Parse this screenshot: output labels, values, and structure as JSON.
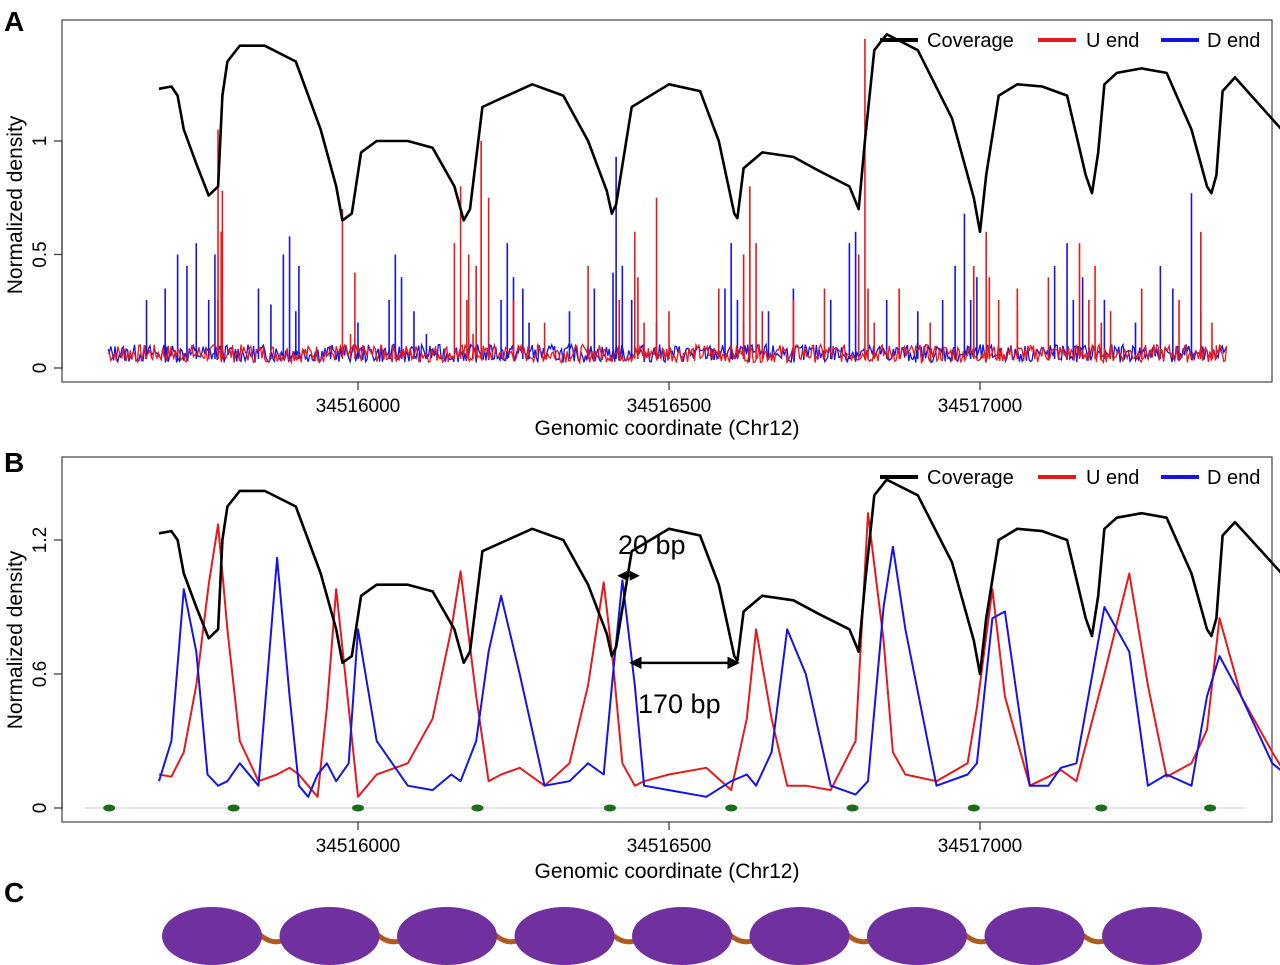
{
  "panels": [
    {
      "letter": "A"
    },
    {
      "letter": "B"
    },
    {
      "letter": "C"
    }
  ],
  "colors": {
    "coverage": "#000000",
    "u_end": "#e41a1c",
    "d_end": "#1414e6",
    "nucleosome": "#7030a0",
    "linker": "#b05a1e",
    "dyad": "#1a6e1a"
  },
  "chart_data": [
    {
      "type": "line",
      "panel": "A",
      "xlabel": "Genomic coordinate (Chr12)",
      "ylabel": "Normalized density",
      "xlim": [
        34515590,
        34517810
      ],
      "ylim": [
        -0.05,
        1.5
      ],
      "x_ticks": [
        34516000,
        34516500,
        34517000
      ],
      "y_ticks": [
        0,
        0.5,
        1
      ],
      "y_tick_labels": [
        "0",
        "0.5",
        "1"
      ],
      "legend": {
        "position": "top-right",
        "entries": [
          "Coverage",
          "U end",
          "D end"
        ]
      },
      "series": [
        {
          "name": "Coverage",
          "x": [
            34515680,
            34515700,
            34515710,
            34515720,
            34515740,
            34515760,
            34515775,
            34515782,
            34515790,
            34515810,
            34515850,
            34515900,
            34515940,
            34515965,
            34515975,
            34515990,
            34516005,
            34516030,
            34516080,
            34516120,
            34516155,
            34516170,
            34516180,
            34516200,
            34516240,
            34516280,
            34516330,
            34516370,
            34516400,
            34516408,
            34516415,
            34516440,
            34516500,
            34516550,
            34516580,
            34516605,
            34516610,
            34516620,
            34516650,
            34516700,
            34516740,
            34516790,
            34516805,
            34516815,
            34516830,
            34516850,
            34516900,
            34516955,
            34516990,
            34517000,
            34517010,
            34517030,
            34517060,
            34517100,
            34517140,
            34517170,
            34517180,
            34517190,
            34517200,
            34517220,
            34517260,
            34517300,
            34517340,
            34517365,
            34517372,
            34517380,
            34517390,
            34517410,
            34517485,
            34517490,
            34517510
          ],
          "values": [
            1.23,
            1.24,
            1.2,
            1.05,
            0.9,
            0.76,
            0.8,
            1.2,
            1.35,
            1.42,
            1.42,
            1.35,
            1.05,
            0.8,
            0.65,
            0.68,
            0.95,
            1.0,
            1.0,
            0.97,
            0.8,
            0.65,
            0.7,
            1.15,
            1.2,
            1.25,
            1.2,
            1.0,
            0.78,
            0.68,
            0.72,
            1.15,
            1.25,
            1.22,
            1.0,
            0.68,
            0.66,
            0.88,
            0.95,
            0.93,
            0.87,
            0.8,
            0.7,
            1.0,
            1.4,
            1.47,
            1.4,
            1.1,
            0.75,
            0.6,
            0.85,
            1.2,
            1.25,
            1.24,
            1.2,
            0.85,
            0.77,
            0.95,
            1.25,
            1.3,
            1.32,
            1.3,
            1.05,
            0.8,
            0.77,
            0.85,
            1.22,
            1.28,
            1.05,
            0.9,
            1.0
          ]
        },
        {
          "name": "U end",
          "peaks_x": [
            34515775,
            34515775,
            34515780,
            34515782,
            34515975,
            34515988,
            34515995,
            34516155,
            34516165,
            34516175,
            34516178,
            34516185,
            34516190,
            34516198,
            34516210,
            34516250,
            34516300,
            34516370,
            34516420,
            34516445,
            34516450,
            34516460,
            34516480,
            34516500,
            34516580,
            34516620,
            34516630,
            34516640,
            34516650,
            34516700,
            34516750,
            34516805,
            34516815,
            34516820,
            34516830,
            34516870,
            34516920,
            34516990,
            34517010,
            34517015,
            34517030,
            34517060,
            34517110,
            34517160,
            34517175,
            34517185,
            34517195,
            34517210,
            34517260,
            34517320,
            34517355,
            34517373,
            34517380
          ],
          "peaks_values": [
            0.3,
            1.05,
            0.6,
            0.78,
            0.7,
            0.15,
            0.42,
            0.55,
            0.8,
            0.3,
            0.5,
            0.15,
            0.45,
            1.0,
            0.75,
            0.3,
            0.2,
            0.45,
            0.3,
            0.6,
            0.4,
            0.2,
            0.75,
            0.25,
            0.35,
            0.5,
            0.8,
            0.55,
            0.25,
            0.3,
            0.35,
            0.5,
            1.45,
            0.35,
            0.2,
            0.35,
            0.2,
            0.45,
            0.6,
            0.4,
            0.3,
            0.35,
            0.4,
            0.55,
            0.3,
            0.45,
            0.2,
            0.25,
            0.35,
            0.3,
            0.6,
            0.2,
            0.1
          ],
          "baseline": 0.04
        },
        {
          "name": "D end",
          "peaks_x": [
            34515660,
            34515690,
            34515710,
            34515725,
            34515740,
            34515760,
            34515770,
            34515840,
            34515860,
            34515880,
            34515890,
            34515900,
            34515905,
            34516000,
            34516050,
            34516060,
            34516070,
            34516090,
            34516110,
            34516230,
            34516240,
            34516250,
            34516265,
            34516275,
            34516340,
            34516380,
            34516410,
            34516415,
            34516425,
            34516440,
            34516480,
            34516590,
            34516600,
            34516610,
            34516620,
            34516660,
            34516700,
            34516760,
            34516790,
            34516800,
            34516805,
            34516850,
            34516900,
            34516940,
            34516960,
            34516975,
            34516985,
            34516995,
            34517060,
            34517120,
            34517140,
            34517150,
            34517165,
            34517200,
            34517250,
            34517290,
            34517310,
            34517340,
            34517355
          ],
          "peaks_values": [
            0.3,
            0.35,
            0.5,
            0.45,
            0.55,
            0.3,
            0.5,
            0.35,
            0.28,
            0.5,
            0.58,
            0.25,
            0.45,
            0.2,
            0.3,
            0.5,
            0.4,
            0.25,
            0.15,
            0.3,
            0.55,
            0.4,
            0.35,
            0.2,
            0.25,
            0.35,
            0.42,
            0.93,
            0.45,
            0.3,
            0.2,
            0.35,
            0.55,
            0.3,
            0.2,
            0.25,
            0.35,
            0.3,
            0.55,
            0.6,
            0.2,
            0.3,
            0.25,
            0.3,
            0.45,
            0.68,
            0.3,
            0.4,
            0.25,
            0.45,
            0.55,
            0.3,
            0.4,
            0.3,
            0.2,
            0.45,
            0.35,
            0.77,
            0.25
          ],
          "baseline": 0.04
        }
      ]
    },
    {
      "type": "line",
      "panel": "B",
      "xlabel": "Genomic coordinate (Chr12)",
      "ylabel": "Normalized density",
      "xlim": [
        34515590,
        34517810
      ],
      "ylim": [
        -0.05,
        1.55
      ],
      "x_ticks": [
        34516000,
        34516500,
        34517000
      ],
      "y_ticks": [
        0,
        0.6,
        1.2
      ],
      "y_tick_labels": [
        "0",
        "0.6",
        "1.2"
      ],
      "legend": {
        "position": "top-right",
        "entries": [
          "Coverage",
          "U end",
          "D end"
        ]
      },
      "annotations": [
        {
          "text": "20 bp",
          "x_from": 34516420,
          "x_to": 34516440,
          "y": 1.04
        },
        {
          "text": "170 bp",
          "x_from": 34516440,
          "x_to": 34516610,
          "y": 0.65
        }
      ],
      "dyads_x": [
        34515600,
        34515800,
        34516000,
        34516192,
        34516405,
        34516600,
        34516795,
        34516990,
        34517195,
        34517370
      ],
      "series": [
        {
          "name": "Coverage",
          "x": [
            34515680,
            34515700,
            34515710,
            34515720,
            34515740,
            34515760,
            34515775,
            34515782,
            34515790,
            34515810,
            34515850,
            34515900,
            34515940,
            34515965,
            34515975,
            34515990,
            34516005,
            34516030,
            34516080,
            34516120,
            34516155,
            34516170,
            34516180,
            34516200,
            34516240,
            34516280,
            34516330,
            34516370,
            34516400,
            34516408,
            34516415,
            34516440,
            34516500,
            34516550,
            34516580,
            34516605,
            34516610,
            34516620,
            34516650,
            34516700,
            34516740,
            34516790,
            34516805,
            34516815,
            34516830,
            34516850,
            34516900,
            34516955,
            34516990,
            34517000,
            34517010,
            34517030,
            34517060,
            34517100,
            34517140,
            34517170,
            34517180,
            34517190,
            34517200,
            34517220,
            34517260,
            34517300,
            34517340,
            34517365,
            34517372,
            34517380,
            34517390,
            34517410,
            34517485,
            34517490,
            34517510
          ],
          "values": [
            1.23,
            1.24,
            1.2,
            1.05,
            0.9,
            0.76,
            0.8,
            1.2,
            1.35,
            1.42,
            1.42,
            1.35,
            1.05,
            0.8,
            0.65,
            0.68,
            0.95,
            1.0,
            1.0,
            0.97,
            0.8,
            0.65,
            0.7,
            1.15,
            1.2,
            1.25,
            1.2,
            1.0,
            0.78,
            0.68,
            0.72,
            1.15,
            1.25,
            1.22,
            1.0,
            0.68,
            0.66,
            0.88,
            0.95,
            0.93,
            0.87,
            0.8,
            0.7,
            1.0,
            1.4,
            1.47,
            1.4,
            1.1,
            0.75,
            0.6,
            0.85,
            1.2,
            1.25,
            1.24,
            1.2,
            0.85,
            0.77,
            0.95,
            1.25,
            1.3,
            1.32,
            1.3,
            1.05,
            0.8,
            0.77,
            0.85,
            1.22,
            1.28,
            1.05,
            0.9,
            1.0
          ]
        },
        {
          "name": "U end",
          "x": [
            34515680,
            34515700,
            34515720,
            34515740,
            34515760,
            34515775,
            34515790,
            34515810,
            34515840,
            34515870,
            34515890,
            34515905,
            34515920,
            34515935,
            34515950,
            34515965,
            34515985,
            34516000,
            34516030,
            34516080,
            34516120,
            34516150,
            34516165,
            34516190,
            34516210,
            34516230,
            34516260,
            34516300,
            34516340,
            34516370,
            34516395,
            34516410,
            34516425,
            34516445,
            34516460,
            34516500,
            34516560,
            34516600,
            34516625,
            34516640,
            34516665,
            34516690,
            34516720,
            34516760,
            34516800,
            34516820,
            34516845,
            34516860,
            34516880,
            34516930,
            34516980,
            34516995,
            34517020,
            34517040,
            34517080,
            34517110,
            34517130,
            34517155,
            34517200,
            34517240,
            34517270,
            34517300,
            34517340,
            34517365,
            34517385,
            34517420,
            34517470,
            34517492,
            34517515
          ],
          "values": [
            0.15,
            0.14,
            0.25,
            0.55,
            1.0,
            1.27,
            0.8,
            0.3,
            0.12,
            0.15,
            0.18,
            0.15,
            0.1,
            0.05,
            0.45,
            0.98,
            0.45,
            0.05,
            0.15,
            0.2,
            0.4,
            0.8,
            1.06,
            0.5,
            0.12,
            0.15,
            0.18,
            0.1,
            0.2,
            0.55,
            1.01,
            0.65,
            0.2,
            0.1,
            0.12,
            0.15,
            0.18,
            0.08,
            0.4,
            0.8,
            0.4,
            0.1,
            0.1,
            0.08,
            0.3,
            1.32,
            0.75,
            0.25,
            0.15,
            0.12,
            0.2,
            0.45,
            0.98,
            0.5,
            0.1,
            0.14,
            0.17,
            0.12,
            0.6,
            1.05,
            0.55,
            0.14,
            0.2,
            0.35,
            0.85,
            0.5,
            0.25,
            0.15,
            0.62
          ]
        },
        {
          "name": "D end",
          "x": [
            34515680,
            34515700,
            34515720,
            34515740,
            34515758,
            34515775,
            34515790,
            34515810,
            34515840,
            34515870,
            34515890,
            34515905,
            34515920,
            34515935,
            34515950,
            34515965,
            34515985,
            34516000,
            34516030,
            34516080,
            34516120,
            34516150,
            34516165,
            34516190,
            34516210,
            34516230,
            34516260,
            34516300,
            34516340,
            34516370,
            34516395,
            34516410,
            34516425,
            34516445,
            34516460,
            34516500,
            34516560,
            34516600,
            34516625,
            34516640,
            34516665,
            34516690,
            34516720,
            34516760,
            34516800,
            34516820,
            34516845,
            34516860,
            34516880,
            34516930,
            34516980,
            34516995,
            34517020,
            34517040,
            34517080,
            34517110,
            34517130,
            34517155,
            34517200,
            34517240,
            34517270,
            34517300,
            34517340,
            34517365,
            34517385,
            34517420,
            34517470,
            34517492,
            34517515
          ],
          "values": [
            0.12,
            0.3,
            0.98,
            0.7,
            0.15,
            0.1,
            0.12,
            0.2,
            0.1,
            1.12,
            0.5,
            0.1,
            0.05,
            0.15,
            0.2,
            0.12,
            0.2,
            0.8,
            0.3,
            0.1,
            0.08,
            0.15,
            0.12,
            0.3,
            0.7,
            0.95,
            0.6,
            0.1,
            0.12,
            0.2,
            0.15,
            0.6,
            1.02,
            0.55,
            0.1,
            0.08,
            0.05,
            0.12,
            0.15,
            0.1,
            0.25,
            0.8,
            0.6,
            0.1,
            0.06,
            0.12,
            0.9,
            1.17,
            0.8,
            0.1,
            0.15,
            0.2,
            0.85,
            0.88,
            0.1,
            0.1,
            0.18,
            0.2,
            0.9,
            0.7,
            0.1,
            0.15,
            0.1,
            0.5,
            0.68,
            0.5,
            0.2,
            0.15,
            0.2
          ]
        }
      ]
    }
  ],
  "panel_c": {
    "nucleosome_count": 9
  }
}
